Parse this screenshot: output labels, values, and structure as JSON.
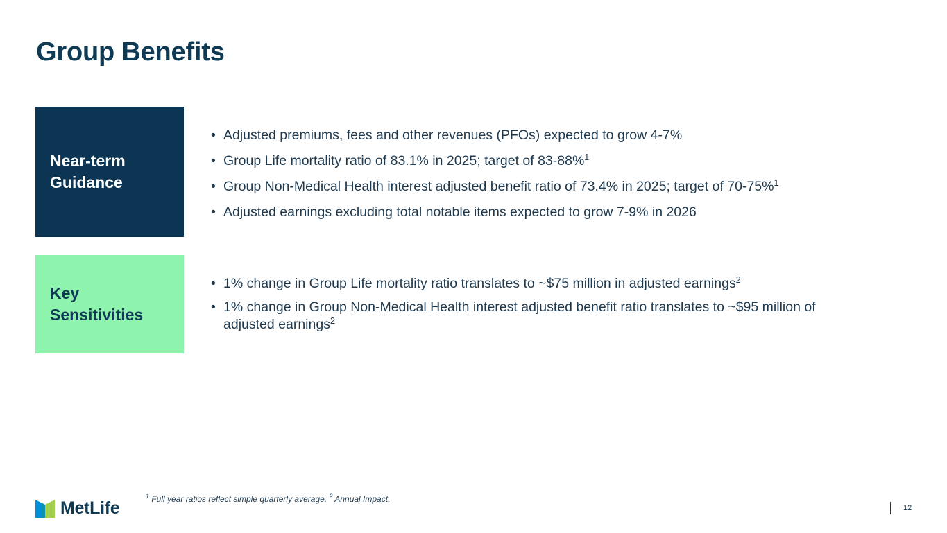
{
  "title": "Group Benefits",
  "guidance": {
    "label_line1": "Near-term",
    "label_line2": "Guidance",
    "bullets": [
      {
        "text": "Adjusted premiums, fees and other revenues (PFOs) expected to grow 4-7%",
        "sup": ""
      },
      {
        "text": "Group Life mortality ratio of 83.1% in 2025; target of 83-88%",
        "sup": "1"
      },
      {
        "text": "Group Non-Medical Health interest adjusted benefit ratio of 73.4% in 2025; target of 70-75%",
        "sup": "1"
      },
      {
        "text": "Adjusted earnings excluding total notable items expected to grow 7-9% in 2026",
        "sup": ""
      }
    ]
  },
  "sensitivities": {
    "label_line1": "Key",
    "label_line2": "Sensitivities",
    "bullets": [
      {
        "text": "1% change in Group Life mortality ratio translates to ~$75 million in adjusted earnings",
        "sup": "2"
      },
      {
        "text": "1% change in Group Non-Medical Health interest adjusted benefit ratio translates to ~$95 million of adjusted earnings",
        "sup": "2"
      }
    ]
  },
  "footer": {
    "logo_text": "MetLife",
    "footnote_1_sup": "1",
    "footnote_1_text": " Full year ratios reflect simple quarterly average. ",
    "footnote_2_sup": "2",
    "footnote_2_text": " Annual Impact.",
    "page_number": "12"
  },
  "colors": {
    "navy": "#0b3552",
    "mint": "#8ef3ad",
    "logo_blue": "#0090da",
    "logo_green": "#a4ce4e"
  }
}
